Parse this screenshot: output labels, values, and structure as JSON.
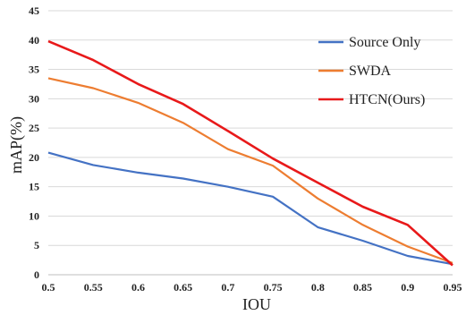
{
  "chart_data": {
    "type": "line",
    "title": "",
    "xlabel": "IOU",
    "ylabel": "mAP(%)",
    "x": [
      "0.5",
      "0.55",
      "0.6",
      "0.65",
      "0.7",
      "0.75",
      "0.8",
      "0.85",
      "0.9",
      "0.95"
    ],
    "ylim": [
      0,
      45
    ],
    "yticks": [
      "0",
      "5",
      "10",
      "15",
      "20",
      "25",
      "30",
      "35",
      "40",
      "45"
    ],
    "grid": "horizontal",
    "legend": "top-right",
    "series": [
      {
        "name": "Source Only",
        "color": "#4472C4",
        "values": [
          20.8,
          18.7,
          17.4,
          16.4,
          15.0,
          13.3,
          8.1,
          5.8,
          3.2,
          1.8
        ]
      },
      {
        "name": "SWDA",
        "color": "#ED7D31",
        "values": [
          33.5,
          31.8,
          29.3,
          25.9,
          21.4,
          18.6,
          13.0,
          8.5,
          4.8,
          2.0
        ]
      },
      {
        "name": "HTCN(Ours)",
        "color": "#E8191A",
        "values": [
          39.8,
          36.6,
          32.5,
          29.1,
          24.5,
          19.8,
          15.7,
          11.6,
          8.5,
          1.6
        ]
      }
    ]
  }
}
